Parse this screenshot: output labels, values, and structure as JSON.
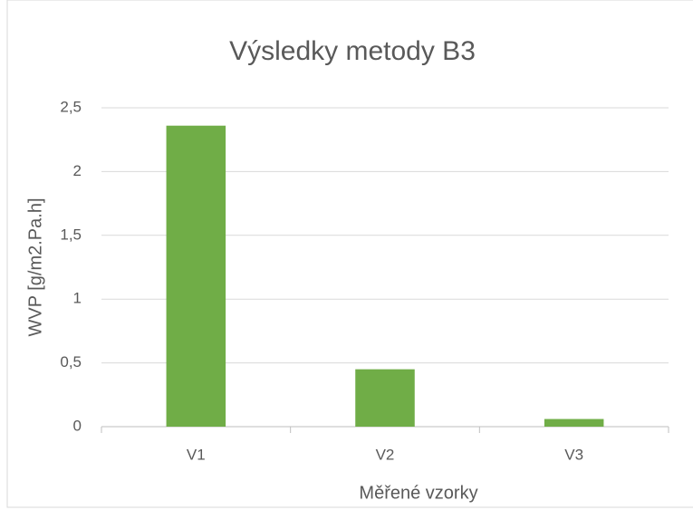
{
  "chart_data": {
    "type": "bar",
    "title": "Výsledky metody B3",
    "x_label": "Měřené vzorky",
    "y_label": "WVP  [g/m2.Pa.h]",
    "categories": [
      "V1",
      "V2",
      "V3"
    ],
    "values": [
      2.36,
      0.45,
      0.06
    ],
    "color": "#70ad47",
    "ylim": [
      0,
      2.5
    ],
    "yticks": [
      0,
      {
        "value": 0.5,
        "label": "0,5"
      },
      1,
      {
        "value": 1.5,
        "label": "1,5"
      },
      2,
      {
        "value": 2.5,
        "label": "2,5"
      }
    ],
    "grid": true
  }
}
